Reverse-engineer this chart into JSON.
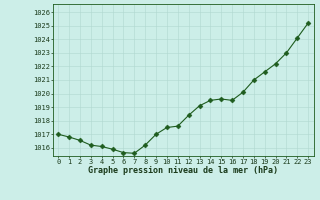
{
  "x_data": [
    0,
    1,
    2,
    3,
    4,
    5,
    6,
    7,
    8,
    9,
    10,
    11,
    12,
    13,
    14,
    15,
    16,
    17,
    18,
    19,
    20,
    21,
    22,
    23
  ],
  "y_data": [
    1017.0,
    1016.8,
    1016.55,
    1016.2,
    1016.1,
    1015.9,
    1015.65,
    1015.6,
    1016.2,
    1017.0,
    1017.5,
    1017.6,
    1018.4,
    1019.1,
    1019.5,
    1019.6,
    1019.5,
    1020.1,
    1021.0,
    1021.6,
    1022.2,
    1023.0,
    1024.1,
    1025.2
  ],
  "ylim": [
    1015.4,
    1026.6
  ],
  "ytick_min": 1016,
  "ytick_max": 1026,
  "xticks": [
    0,
    1,
    2,
    3,
    4,
    5,
    6,
    7,
    8,
    9,
    10,
    11,
    12,
    13,
    14,
    15,
    16,
    17,
    18,
    19,
    20,
    21,
    22,
    23
  ],
  "xlabel": "Graphe pression niveau de la mer (hPa)",
  "line_color": "#1e5c1e",
  "marker_color": "#1e5c1e",
  "bg_color": "#cceee8",
  "grid_color": "#b0d8d0",
  "spine_color": "#1e5c1e",
  "tick_label_color": "#1a3a1a",
  "xlabel_color": "#1a3a1a",
  "tick_fontsize": 5.0,
  "xlabel_fontsize": 6.0,
  "linewidth": 0.8,
  "markersize": 2.5
}
